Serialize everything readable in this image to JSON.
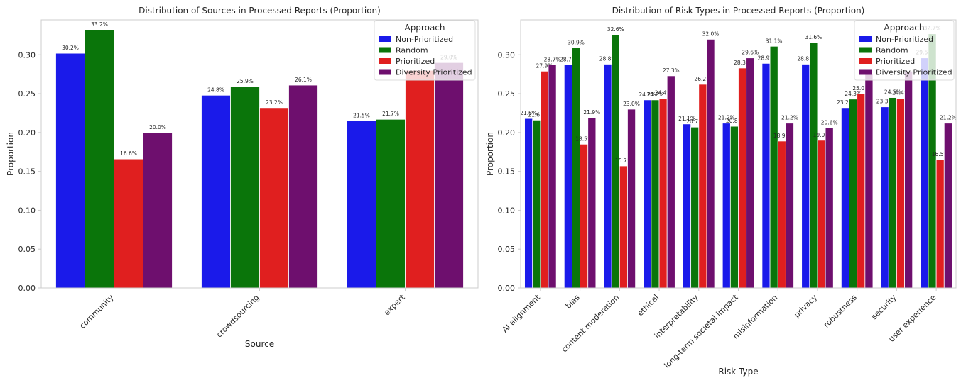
{
  "chart_data": [
    {
      "type": "bar",
      "title": "Distribution of Sources in Processed Reports (Proportion)",
      "xlabel": "Source",
      "ylabel": "Proportion",
      "ylim": [
        0,
        0.345
      ],
      "yticks": [
        "0.00",
        "0.05",
        "0.10",
        "0.15",
        "0.20",
        "0.25",
        "0.30"
      ],
      "categories": [
        "community",
        "crowdsourcing",
        "expert"
      ],
      "series": [
        {
          "name": "Non-Prioritized",
          "color": "#1a1aea",
          "values": [
            0.302,
            0.248,
            0.215
          ],
          "labels": [
            "30.2%",
            "24.8%",
            "21.5%"
          ]
        },
        {
          "name": "Random",
          "color": "#0a750a",
          "values": [
            0.332,
            0.259,
            0.217
          ],
          "labels": [
            "33.2%",
            "25.9%",
            "21.7%"
          ]
        },
        {
          "name": "Prioritized",
          "color": "#e01f1f",
          "values": [
            0.166,
            0.232,
            0.28
          ],
          "labels": [
            "16.6%",
            "23.2%",
            ""
          ]
        },
        {
          "name": "Diversity Prioritized",
          "color": "#6e0f6e",
          "values": [
            0.2,
            0.261,
            0.29
          ],
          "labels": [
            "20.0%",
            "26.1%",
            "29.0%"
          ]
        }
      ],
      "legend": {
        "title": "Approach",
        "position": "top-right"
      },
      "grid": false
    },
    {
      "type": "bar",
      "title": "Distribution of Risk Types in Processed Reports (Proportion)",
      "xlabel": "Risk Type",
      "ylabel": "Proportion",
      "ylim": [
        0,
        0.345
      ],
      "yticks": [
        "0.00",
        "0.05",
        "0.10",
        "0.15",
        "0.20",
        "0.25",
        "0.30"
      ],
      "categories": [
        "AI alignment",
        "bias",
        "content moderation",
        "ethical",
        "interpretability",
        "long-term societal impact",
        "misinformation",
        "privacy",
        "robustness",
        "security",
        "user experience"
      ],
      "series": [
        {
          "name": "Non-Prioritized",
          "color": "#1a1aea",
          "values": [
            0.218,
            0.287,
            0.288,
            0.242,
            0.211,
            0.212,
            0.289,
            0.288,
            0.232,
            0.233,
            0.296
          ],
          "labels": [
            "21.8%",
            "28.7%",
            "28.8%",
            "24.2%",
            "21.1%",
            "21.2%",
            "28.9%",
            "28.8%",
            "23.2%",
            "23.3%",
            "29.6%"
          ]
        },
        {
          "name": "Random",
          "color": "#0a750a",
          "values": [
            0.216,
            0.309,
            0.326,
            0.242,
            0.207,
            0.208,
            0.311,
            0.316,
            0.243,
            0.245,
            0.327
          ],
          "labels": [
            "21.6%",
            "30.9%",
            "32.6%",
            "24.2%",
            "20.7%",
            "20.8%",
            "31.1%",
            "31.6%",
            "24.3%",
            "24.5%",
            "32.7%"
          ]
        },
        {
          "name": "Prioritized",
          "color": "#e01f1f",
          "values": [
            0.279,
            0.185,
            0.157,
            0.244,
            0.262,
            0.283,
            0.189,
            0.19,
            0.25,
            0.244,
            0.165
          ],
          "labels": [
            "27.9%",
            "18.5%",
            "15.7%",
            "24.4%",
            "26.2%",
            "28.3%",
            "18.9%",
            "19.0%",
            "25.0%",
            "24.4%",
            "16.5%"
          ]
        },
        {
          "name": "Diversity Prioritized",
          "color": "#6e0f6e",
          "values": [
            0.287,
            0.219,
            0.23,
            0.273,
            0.32,
            0.296,
            0.212,
            0.206,
            0.275,
            0.279,
            0.212
          ],
          "labels": [
            "28.7%",
            "21.9%",
            "23.0%",
            "27.3%",
            "32.0%",
            "29.6%",
            "21.2%",
            "20.6%",
            "",
            "",
            "21.2%"
          ]
        }
      ],
      "legend": {
        "title": "Approach",
        "position": "top-right"
      },
      "grid": false
    }
  ]
}
